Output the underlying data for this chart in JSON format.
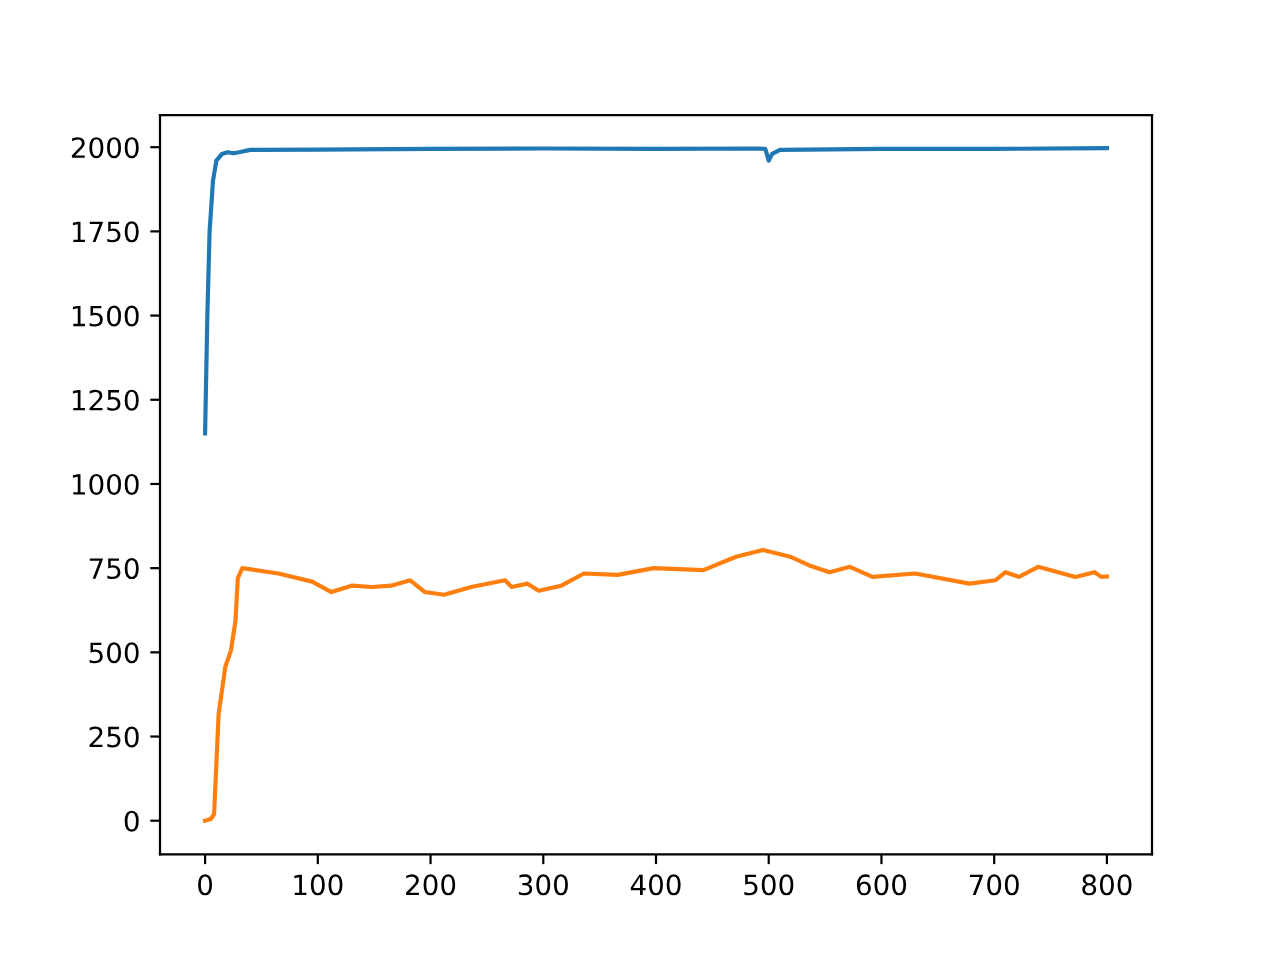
{
  "chart_data": {
    "type": "line",
    "xlim": [
      -40,
      840
    ],
    "ylim": [
      -100,
      2095
    ],
    "xticks": [
      0,
      100,
      200,
      300,
      400,
      500,
      600,
      700,
      800
    ],
    "yticks": [
      0,
      250,
      500,
      750,
      1000,
      1250,
      1500,
      1750,
      2000
    ],
    "grid": false,
    "legend": false,
    "marker": "none",
    "line_style": "solid",
    "series": [
      {
        "color": "#1f77b4",
        "x": [
          0,
          2,
          4,
          7,
          10,
          15,
          20,
          25,
          30,
          40,
          100,
          200,
          300,
          400,
          490,
          497,
          500,
          503,
          510,
          600,
          700,
          800
        ],
        "values": [
          1150,
          1500,
          1750,
          1900,
          1960,
          1980,
          1985,
          1982,
          1985,
          1992,
          1993,
          1995,
          1996,
          1995,
          1996,
          1995,
          1960,
          1980,
          1992,
          1995,
          1995,
          1997
        ]
      },
      {
        "color": "#ff7f0e",
        "x": [
          0,
          5,
          8,
          12,
          18,
          23,
          27,
          29,
          33,
          65,
          95,
          112,
          130,
          148,
          165,
          182,
          195,
          212,
          236,
          266,
          272,
          286,
          296,
          316,
          336,
          366,
          398,
          442,
          471,
          495,
          519,
          536,
          554,
          572,
          592,
          630,
          678,
          701,
          710,
          722,
          739,
          772,
          789,
          795,
          800
        ],
        "values": [
          0,
          5,
          20,
          317,
          458,
          506,
          595,
          720,
          750,
          734,
          710,
          679,
          698,
          694,
          698,
          714,
          679,
          671,
          694,
          714,
          694,
          704,
          683,
          698,
          734,
          730,
          750,
          744,
          784,
          804,
          784,
          758,
          738,
          754,
          724,
          734,
          704,
          714,
          738,
          724,
          754,
          724,
          738,
          724,
          725
        ]
      }
    ]
  }
}
